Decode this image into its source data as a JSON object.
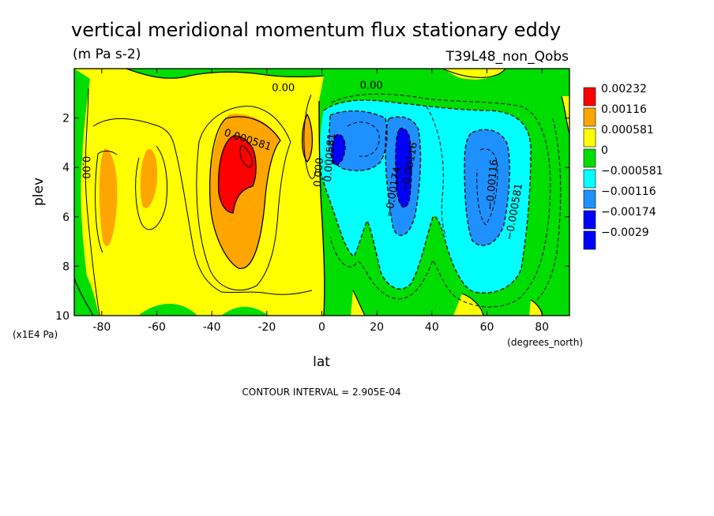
{
  "chart_data": {
    "type": "contour",
    "title": "vertical meridional momentum flux stationary eddy",
    "units": "(m Pa s-2)",
    "run_label": "T39L48_non_Qobs",
    "xlabel": "lat",
    "ylabel": "plev",
    "x_unit": "(degrees_north)",
    "y_unit": "(x1E4 Pa)",
    "xlim": [
      -90,
      90
    ],
    "ylim": [
      10,
      0
    ],
    "x_ticks": [
      -80,
      -60,
      -40,
      -20,
      0,
      20,
      40,
      60,
      80
    ],
    "y_ticks": [
      2,
      4,
      6,
      8,
      10
    ],
    "contour_interval_text": "CONTOUR INTERVAL = 2.905E-04",
    "legend": [
      {
        "label": "0.00232",
        "color": "#ff0000"
      },
      {
        "label": "0.00116",
        "color": "#ffa500"
      },
      {
        "label": "0.000581",
        "color": "#ffff00"
      },
      {
        "label": "0",
        "color": "#00dd00"
      },
      {
        "label": "−0.000581",
        "color": "#00ffff"
      },
      {
        "label": "−0.00116",
        "color": "#1e90ff"
      },
      {
        "label": "−0.00174",
        "color": "#0000ff"
      },
      {
        "label": "−0.0029",
        "color": "#0000ff"
      }
    ],
    "contour_labels": [
      {
        "text": "0.00",
        "lat": -14,
        "plev": 0.8,
        "angle": 0
      },
      {
        "text": "0.00",
        "lat": 18,
        "plev": 0.7,
        "angle": 0
      },
      {
        "text": "0.000581",
        "lat": -27,
        "plev": 2.9,
        "angle": 18
      },
      {
        "text": "0.00",
        "lat": -86,
        "plev": 4.0,
        "angle": 90
      },
      {
        "text": "0.000581",
        "lat": 3,
        "plev": 3.6,
        "angle": -85
      },
      {
        "text": "0.000",
        "lat": -1,
        "plev": 4.2,
        "angle": -85
      },
      {
        "text": "−0.00174",
        "lat": 26,
        "plev": 5.0,
        "angle": -80
      },
      {
        "text": "−0.00116",
        "lat": 32,
        "plev": 4.0,
        "angle": -80
      },
      {
        "text": "−0.00116",
        "lat": 62,
        "plev": 4.7,
        "angle": -85
      },
      {
        "text": "−0.000581",
        "lat": 70,
        "plev": 5.8,
        "angle": -80
      }
    ]
  }
}
